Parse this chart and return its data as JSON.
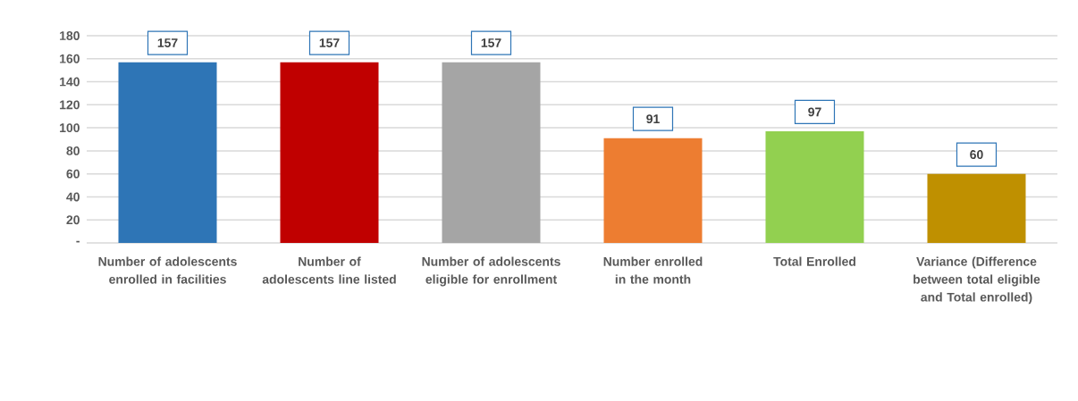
{
  "chart_data": {
    "type": "bar",
    "categories": [
      "Number of adolescents enrolled in facilities",
      "Number of adolescents line listed",
      "Number of adolescents eligible for enrollment",
      "Number enrolled in the month",
      "Total Enrolled",
      "Variance (Difference between total eligible and Total enrolled)"
    ],
    "values": [
      157,
      157,
      157,
      91,
      97,
      60
    ],
    "colors": [
      "#2e75b6",
      "#c00000",
      "#a5a5a5",
      "#ed7d31",
      "#92d050",
      "#bf9000"
    ],
    "ylim": [
      0,
      180
    ],
    "yticks": [
      {
        "value": 0,
        "label": "-"
      },
      20,
      40,
      60,
      80,
      100,
      120,
      140,
      160,
      180
    ],
    "grid": "y",
    "data_labels": true
  }
}
